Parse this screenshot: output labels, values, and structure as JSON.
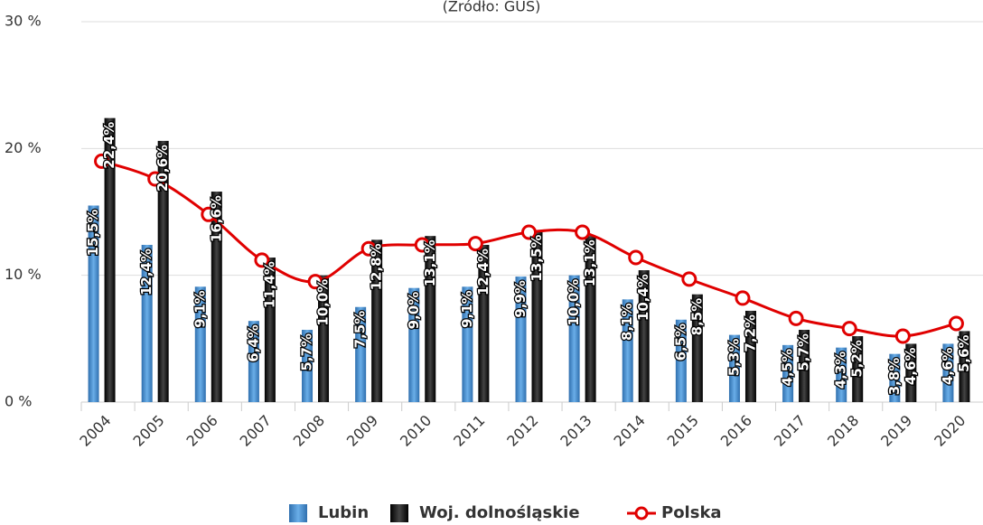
{
  "chart_data": {
    "type": "bar_line",
    "subtitle": "(Źródło: GUS)",
    "categories": [
      "2004",
      "2005",
      "2006",
      "2007",
      "2008",
      "2009",
      "2010",
      "2011",
      "2012",
      "2013",
      "2014",
      "2015",
      "2016",
      "2017",
      "2018",
      "2019",
      "2020"
    ],
    "ylim": [
      0,
      30
    ],
    "yticks": [
      {
        "value": 0,
        "label": "0 %"
      },
      {
        "value": 10,
        "label": "10 %"
      },
      {
        "value": 20,
        "label": "20 %"
      },
      {
        "value": 30,
        "label": "30 %"
      }
    ],
    "grid": true,
    "series": [
      {
        "name": "Lubin",
        "type": "bar",
        "color": "#4a90d0",
        "values": [
          15.5,
          12.4,
          9.1,
          6.4,
          5.7,
          7.5,
          9.0,
          9.1,
          9.9,
          10.0,
          8.1,
          6.5,
          5.3,
          4.5,
          4.3,
          3.8,
          4.6
        ],
        "value_labels": [
          "15,5%",
          "12,4%",
          "9,1%",
          "6,4%",
          "5,7%",
          "7,5%",
          "9,0%",
          "9,1%",
          "9,9%",
          "10,0%",
          "8,1%",
          "6,5%",
          "5,3%",
          "4,5%",
          "4,3%",
          "3,8%",
          "4,6%"
        ]
      },
      {
        "name": "Woj. dolnośląskie",
        "type": "bar",
        "color": "#111111",
        "values": [
          22.4,
          20.6,
          16.6,
          11.4,
          10.0,
          12.8,
          13.1,
          12.4,
          13.5,
          13.1,
          10.4,
          8.5,
          7.2,
          5.7,
          5.2,
          4.6,
          5.6
        ],
        "value_labels": [
          "22,4%",
          "20,6%",
          "16,6%",
          "11,4%",
          "10,0%",
          "12,8%",
          "13,1%",
          "12,4%",
          "13,5%",
          "13,1%",
          "10,4%",
          "8,5%",
          "7,2%",
          "5,7%",
          "5,2%",
          "4,6%",
          "5,6%"
        ]
      },
      {
        "name": "Polska",
        "type": "line",
        "color": "#e00000",
        "values": [
          19.0,
          17.6,
          14.8,
          11.2,
          9.5,
          12.1,
          12.4,
          12.5,
          13.4,
          13.4,
          11.4,
          9.7,
          8.2,
          6.6,
          5.8,
          5.2,
          6.2
        ]
      }
    ],
    "legend": "bottom"
  }
}
